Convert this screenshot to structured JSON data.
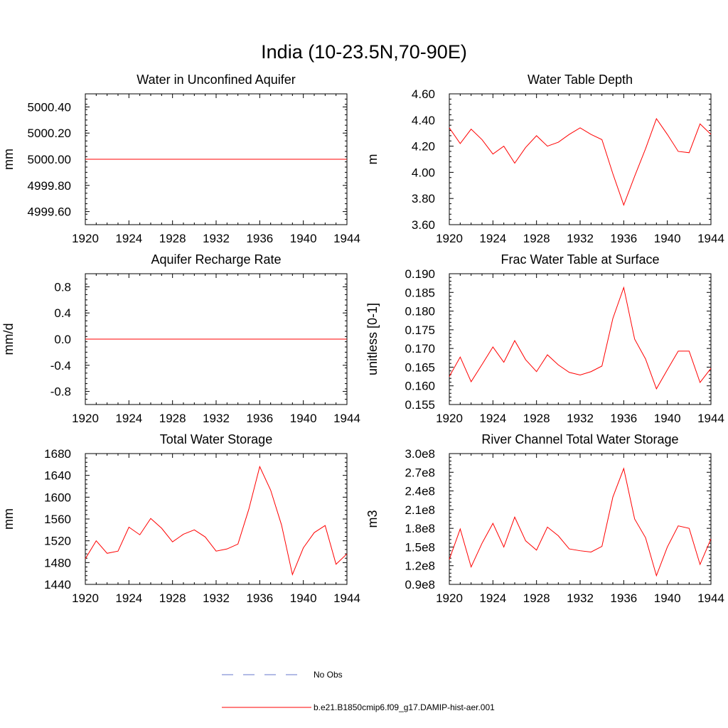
{
  "page_title": "India (10-23.5N,70-90E)",
  "legend": {
    "entries": [
      {
        "label": "No Obs",
        "color": "#6677cc",
        "style": "dashed"
      },
      {
        "label": "b.e21.B1850cmip6.f09_g17.DAMIP-hist-aer.001",
        "color": "#ff0000",
        "style": "solid"
      }
    ]
  },
  "colors": {
    "series": "#ff0000",
    "axis": "#000000"
  },
  "chart_data": [
    {
      "type": "line",
      "title": "Water in Unconfined Aquifer",
      "ylabel": "mm",
      "xlabel": "",
      "xlim": [
        1920,
        1944
      ],
      "ylim": [
        4999.5,
        5000.5
      ],
      "xticks": [
        1920,
        1924,
        1928,
        1932,
        1936,
        1940,
        1944
      ],
      "yticks": [
        4999.6,
        4999.8,
        5000.0,
        5000.2,
        5000.4
      ],
      "ytick_labels": [
        "4999.60",
        "4999.80",
        "5000.00",
        "5000.20",
        "5000.40"
      ],
      "y_minor_step": 0.04,
      "x": [
        1920,
        1921,
        1922,
        1923,
        1924,
        1925,
        1926,
        1927,
        1928,
        1929,
        1930,
        1931,
        1932,
        1933,
        1934,
        1935,
        1936,
        1937,
        1938,
        1939,
        1940,
        1941,
        1942,
        1943,
        1944
      ],
      "series": [
        {
          "values": [
            5000,
            5000,
            5000,
            5000,
            5000,
            5000,
            5000,
            5000,
            5000,
            5000,
            5000,
            5000,
            5000,
            5000,
            5000,
            5000,
            5000,
            5000,
            5000,
            5000,
            5000,
            5000,
            5000,
            5000,
            5000
          ]
        }
      ]
    },
    {
      "type": "line",
      "title": "Water Table Depth",
      "ylabel": "m",
      "xlabel": "",
      "xlim": [
        1920,
        1944
      ],
      "ylim": [
        3.6,
        4.6
      ],
      "xticks": [
        1920,
        1924,
        1928,
        1932,
        1936,
        1940,
        1944
      ],
      "yticks": [
        3.6,
        3.8,
        4.0,
        4.2,
        4.4,
        4.6
      ],
      "ytick_labels": [
        "3.60",
        "3.80",
        "4.00",
        "4.20",
        "4.40",
        "4.60"
      ],
      "y_minor_step": 0.04,
      "x": [
        1920,
        1921,
        1922,
        1923,
        1924,
        1925,
        1926,
        1927,
        1928,
        1929,
        1930,
        1931,
        1932,
        1933,
        1934,
        1935,
        1936,
        1937,
        1938,
        1939,
        1940,
        1941,
        1942,
        1943,
        1944
      ],
      "series": [
        {
          "values": [
            4.34,
            4.22,
            4.33,
            4.25,
            4.14,
            4.2,
            4.07,
            4.19,
            4.28,
            4.2,
            4.23,
            4.29,
            4.34,
            4.29,
            4.25,
            3.99,
            3.75,
            3.97,
            4.18,
            4.41,
            4.29,
            4.16,
            4.15,
            4.37,
            4.29
          ]
        }
      ]
    },
    {
      "type": "line",
      "title": "Aquifer Recharge Rate",
      "ylabel": "mm/d",
      "xlabel": "",
      "xlim": [
        1920,
        1944
      ],
      "ylim": [
        -1.0,
        1.0
      ],
      "xticks": [
        1920,
        1924,
        1928,
        1932,
        1936,
        1940,
        1944
      ],
      "yticks": [
        -0.8,
        -0.4,
        0.0,
        0.4,
        0.8
      ],
      "ytick_labels": [
        "-0.8",
        "-0.4",
        "0.0",
        "0.4",
        "0.8"
      ],
      "y_minor_step": 0.08,
      "x": [
        1920,
        1921,
        1922,
        1923,
        1924,
        1925,
        1926,
        1927,
        1928,
        1929,
        1930,
        1931,
        1932,
        1933,
        1934,
        1935,
        1936,
        1937,
        1938,
        1939,
        1940,
        1941,
        1942,
        1943,
        1944
      ],
      "series": [
        {
          "values": [
            0,
            0,
            0,
            0,
            0,
            0,
            0,
            0,
            0,
            0,
            0,
            0,
            0,
            0,
            0,
            0,
            0,
            0,
            0,
            0,
            0,
            0,
            0,
            0,
            0
          ]
        }
      ]
    },
    {
      "type": "line",
      "title": "Frac Water Table at Surface",
      "ylabel": "unitless [0-1]",
      "xlabel": "",
      "xlim": [
        1920,
        1944
      ],
      "ylim": [
        0.155,
        0.19
      ],
      "xticks": [
        1920,
        1924,
        1928,
        1932,
        1936,
        1940,
        1944
      ],
      "yticks": [
        0.155,
        0.16,
        0.165,
        0.17,
        0.175,
        0.18,
        0.185,
        0.19
      ],
      "ytick_labels": [
        "0.155",
        "0.160",
        "0.165",
        "0.170",
        "0.175",
        "0.180",
        "0.185",
        "0.190"
      ],
      "y_minor_step": 0.001,
      "x": [
        1920,
        1921,
        1922,
        1923,
        1924,
        1925,
        1926,
        1927,
        1928,
        1929,
        1930,
        1931,
        1932,
        1933,
        1934,
        1935,
        1936,
        1937,
        1938,
        1939,
        1940,
        1941,
        1942,
        1943,
        1944
      ],
      "series": [
        {
          "values": [
            0.1625,
            0.1677,
            0.1611,
            0.1657,
            0.1704,
            0.1663,
            0.1721,
            0.167,
            0.1638,
            0.1683,
            0.1656,
            0.1636,
            0.1629,
            0.1638,
            0.1653,
            0.178,
            0.1863,
            0.1725,
            0.1672,
            0.1592,
            0.1643,
            0.1693,
            0.1693,
            0.1609,
            0.1647
          ]
        }
      ]
    },
    {
      "type": "line",
      "title": "Total Water Storage",
      "ylabel": "mm",
      "xlabel": "",
      "xlim": [
        1920,
        1944
      ],
      "ylim": [
        1440,
        1680
      ],
      "xticks": [
        1920,
        1924,
        1928,
        1932,
        1936,
        1940,
        1944
      ],
      "yticks": [
        1440,
        1480,
        1520,
        1560,
        1600,
        1640,
        1680
      ],
      "ytick_labels": [
        "1440",
        "1480",
        "1520",
        "1560",
        "1600",
        "1640",
        "1680"
      ],
      "y_minor_step": 8,
      "x": [
        1920,
        1921,
        1922,
        1923,
        1924,
        1925,
        1926,
        1927,
        1928,
        1929,
        1930,
        1931,
        1932,
        1933,
        1934,
        1935,
        1936,
        1937,
        1938,
        1939,
        1940,
        1941,
        1942,
        1943,
        1944
      ],
      "series": [
        {
          "values": [
            1487,
            1520,
            1497,
            1501,
            1545,
            1531,
            1561,
            1543,
            1518,
            1532,
            1540,
            1527,
            1501,
            1505,
            1514,
            1578,
            1656,
            1613,
            1549,
            1458,
            1507,
            1535,
            1548,
            1477,
            1496
          ]
        }
      ]
    },
    {
      "type": "line",
      "title": "River Channel Total Water Storage",
      "ylabel": "m3",
      "xlabel": "",
      "xlim": [
        1920,
        1944
      ],
      "ylim": [
        90000000.0,
        300000000.0
      ],
      "xticks": [
        1920,
        1924,
        1928,
        1932,
        1936,
        1940,
        1944
      ],
      "yticks": [
        90000000.0,
        120000000.0,
        150000000.0,
        180000000.0,
        210000000.0,
        240000000.0,
        270000000.0,
        300000000.0
      ],
      "ytick_labels": [
        "0.9e8",
        "1.2e8",
        "1.5e8",
        "1.8e8",
        "2.1e8",
        "2.4e8",
        "2.7e8",
        "3.0e8"
      ],
      "y_minor_step": 6000000.0,
      "x": [
        1920,
        1921,
        1922,
        1923,
        1924,
        1925,
        1926,
        1927,
        1928,
        1929,
        1930,
        1931,
        1932,
        1933,
        1934,
        1935,
        1936,
        1937,
        1938,
        1939,
        1940,
        1941,
        1942,
        1943,
        1944
      ],
      "series": [
        {
          "values": [
            130000000.0,
            179000000.0,
            118000000.0,
            156000000.0,
            188000000.0,
            150000000.0,
            198000000.0,
            160000000.0,
            145000000.0,
            182000000.0,
            168000000.0,
            147000000.0,
            144000000.0,
            142000000.0,
            151000000.0,
            230000000.0,
            276000000.0,
            195000000.0,
            165000000.0,
            104000000.0,
            150000000.0,
            184000000.0,
            180000000.0,
            122000000.0,
            163000000.0
          ]
        }
      ]
    }
  ]
}
